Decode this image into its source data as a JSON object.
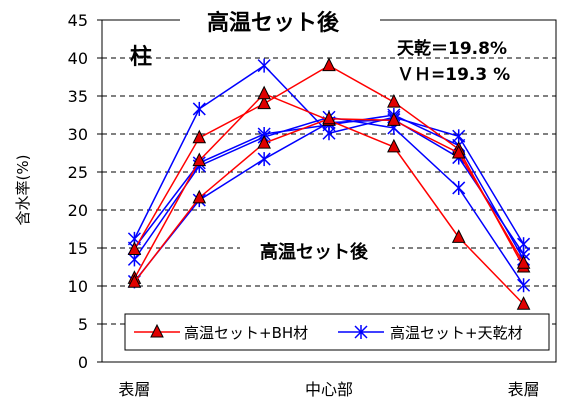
{
  "chart_data": {
    "type": "line",
    "title": "高温セット後",
    "ylabel": "含水率(%)",
    "xlabel": "",
    "ylim": [
      0,
      45
    ],
    "yticks": [
      0,
      5,
      10,
      15,
      20,
      25,
      30,
      35,
      40,
      45
    ],
    "x_positions": [
      1,
      2,
      3,
      4,
      5,
      6,
      7
    ],
    "x_tick_labels": [
      {
        "pos": 1,
        "label": "表層"
      },
      {
        "pos": 4,
        "label": "中心部"
      },
      {
        "pos": 7,
        "label": "表層"
      }
    ],
    "annotations": {
      "pillar": "柱",
      "subtitle": "高温セット後",
      "stat_line1": "天乾＝19.8%",
      "stat_line2": "ＶＨ=19.3 %"
    },
    "legend_position": "bottom",
    "grid": "dashed horizontal",
    "series": [
      {
        "name": "高温セット+BH材",
        "group": 0,
        "values": [
          14.8,
          29.5,
          34.0,
          39.0,
          34.2,
          28.0,
          12.5
        ]
      },
      {
        "name": "",
        "group": 0,
        "values": [
          11.0,
          26.5,
          35.3,
          31.8,
          28.3,
          16.4,
          7.6
        ]
      },
      {
        "name": "",
        "group": 0,
        "values": [
          10.5,
          21.6,
          28.8,
          32.0,
          31.8,
          27.5,
          13.0
        ]
      },
      {
        "name": "高温セット+天乾材",
        "group": 1,
        "values": [
          16.2,
          33.3,
          39.0,
          30.1,
          32.2,
          29.7,
          15.5
        ]
      },
      {
        "name": "",
        "group": 1,
        "values": [
          13.5,
          25.8,
          29.6,
          32.2,
          30.8,
          22.9,
          10.1
        ]
      },
      {
        "name": "",
        "group": 1,
        "values": [
          10.6,
          21.3,
          26.7,
          31.5,
          31.9,
          26.9,
          14.2
        ]
      },
      {
        "name": "",
        "group": 1,
        "values": [
          15.0,
          26.2,
          30.0,
          31.2,
          32.5,
          28.5,
          13.5
        ]
      }
    ]
  },
  "colors": {
    "bh_line": "#ff0000",
    "bh_marker_fill": "#e00000",
    "bh_marker_stroke": "#000000",
    "tenkan_line": "#0000ff",
    "tenkan_marker": "#0000ff",
    "grid": "#000000",
    "axis": "#000000"
  },
  "legend": {
    "bh_label": "高温セット+BH材",
    "tenkan_label": "高温セット+天乾材",
    "bh_marker": "triangle-icon",
    "tenkan_marker": "asterisk-icon"
  }
}
